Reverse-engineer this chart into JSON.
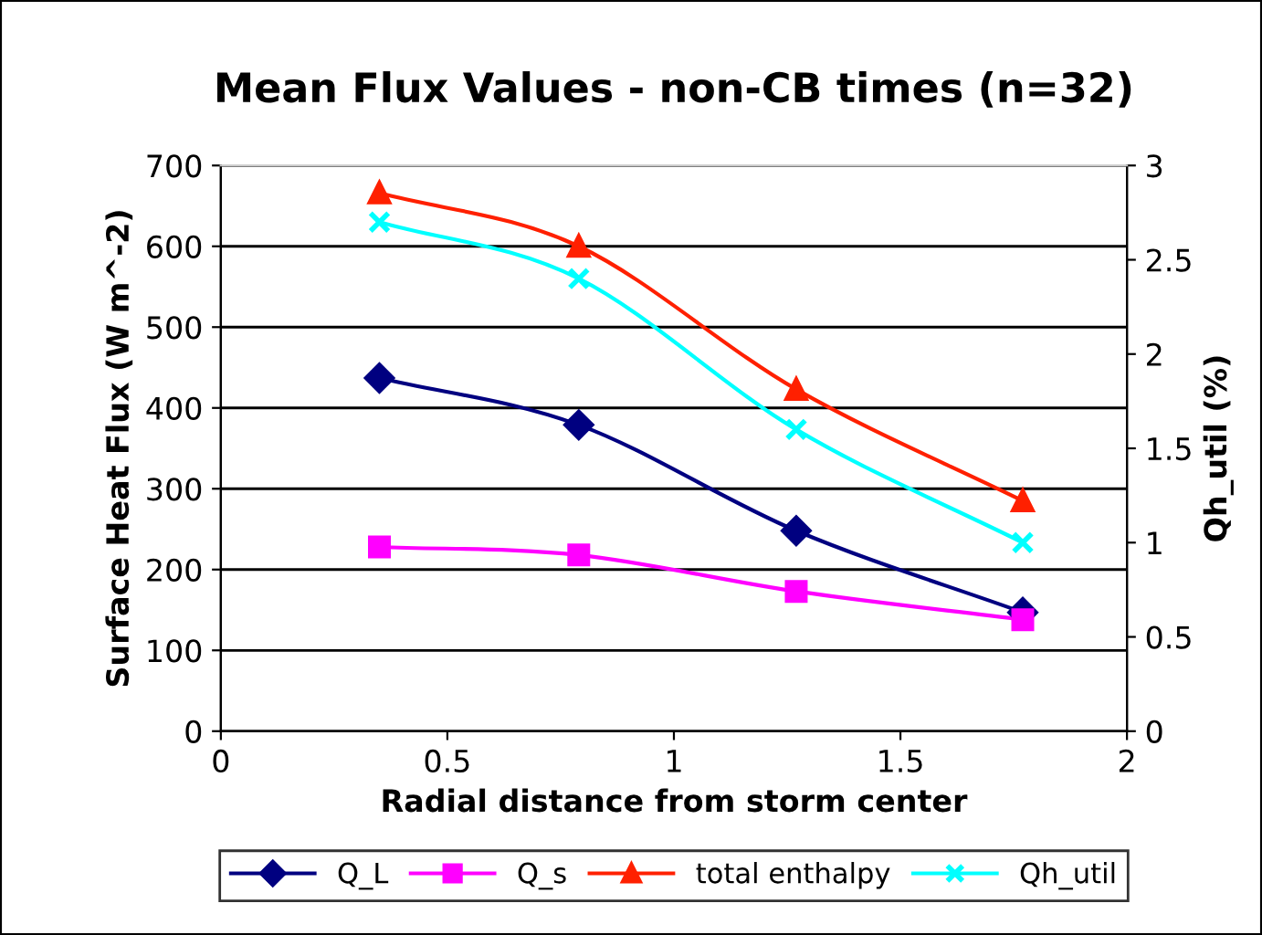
{
  "chart_data": {
    "type": "line",
    "title": "Mean Flux Values - non-CB times (n=32)",
    "xlabel": "Radial distance from storm center",
    "ylabel": "Surface Heat Flux (W m^-2)",
    "y2label": "Qh_util (%)",
    "x": [
      0.35,
      0.79,
      1.27,
      1.77
    ],
    "series": [
      {
        "name": "Q_L",
        "color": "#000080",
        "marker": "diamond",
        "values": [
          437,
          379,
          248,
          147
        ]
      },
      {
        "name": "Q_s",
        "color": "#ff00ff",
        "marker": "square",
        "values": [
          228,
          218,
          173,
          138
        ]
      },
      {
        "name": "total enthalpy",
        "color": "#ff2000",
        "marker": "triangle",
        "values": [
          666,
          600,
          423,
          285
        ]
      },
      {
        "name": "Qh_util",
        "color": "#00ffff",
        "marker": "cross",
        "axis": "y2",
        "values": [
          2.7,
          2.4,
          1.6,
          1.0
        ]
      }
    ],
    "xlim": [
      0,
      2
    ],
    "xticks": [
      0,
      0.5,
      1,
      1.5,
      2
    ],
    "ylim": [
      0,
      700
    ],
    "yticks": [
      0,
      100,
      200,
      300,
      400,
      500,
      600,
      700
    ],
    "y2lim": [
      0,
      3
    ],
    "y2ticks": [
      0,
      0.5,
      1,
      1.5,
      2,
      2.5,
      3
    ],
    "grid": "y",
    "legend": "bottom",
    "line_style": "solid"
  }
}
